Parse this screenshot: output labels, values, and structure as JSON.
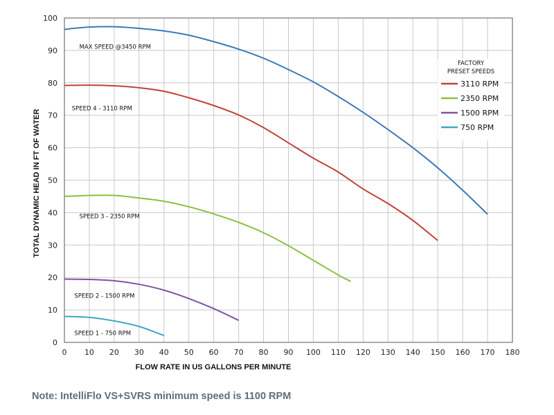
{
  "chart_data": {
    "type": "line",
    "xlabel": "FLOW RATE IN US GALLONS PER MINUTE",
    "ylabel": "TOTAL DYNAMIC HEAD IN FT OF WATER",
    "xlim": [
      0,
      180
    ],
    "ylim": [
      0,
      100
    ],
    "xticks": [
      "0",
      "10",
      "20",
      "30",
      "40",
      "50",
      "60",
      "70",
      "80",
      "90",
      "100",
      "110",
      "120",
      "130",
      "140",
      "150",
      "160",
      "170",
      "180"
    ],
    "yticks": [
      "0",
      "10",
      "20",
      "30",
      "40",
      "50",
      "60",
      "70",
      "80",
      "90",
      "100"
    ],
    "grid": true,
    "legend": {
      "title_lines": [
        "FACTORY",
        "PRESET SPEEDS"
      ],
      "placement": "top-right",
      "entries": [
        {
          "label": "3110 RPM",
          "color": "#c0413a"
        },
        {
          "label": "2350 RPM",
          "color": "#8cbf3f"
        },
        {
          "label": "1500 RPM",
          "color": "#7b56a0"
        },
        {
          "label": "750 RPM",
          "color": "#3fa7c5"
        }
      ]
    },
    "series": [
      {
        "name": "MAX SPEED @3450 RPM",
        "color": "#3b7ab8",
        "label_pos": [
          6,
          90.5
        ],
        "points": [
          [
            0,
            96.5
          ],
          [
            10,
            97.2
          ],
          [
            20,
            97.3
          ],
          [
            30,
            96.8
          ],
          [
            40,
            96
          ],
          [
            50,
            94.7
          ],
          [
            60,
            92.7
          ],
          [
            70,
            90.4
          ],
          [
            80,
            87.6
          ],
          [
            90,
            84.1
          ],
          [
            100,
            80.3
          ],
          [
            110,
            75.8
          ],
          [
            120,
            70.9
          ],
          [
            130,
            65.6
          ],
          [
            140,
            60
          ],
          [
            150,
            53.8
          ],
          [
            160,
            46.9
          ],
          [
            170,
            39.5
          ]
        ]
      },
      {
        "name": "SPEED 4 - 3110 RPM",
        "color": "#c0413a",
        "label_pos": [
          3,
          71.5
        ],
        "points": [
          [
            0,
            79.2
          ],
          [
            10,
            79.3
          ],
          [
            20,
            79.1
          ],
          [
            30,
            78.5
          ],
          [
            40,
            77.4
          ],
          [
            50,
            75.4
          ],
          [
            60,
            73
          ],
          [
            70,
            70.1
          ],
          [
            80,
            66.2
          ],
          [
            90,
            61.5
          ],
          [
            100,
            56.8
          ],
          [
            110,
            52.5
          ],
          [
            120,
            47.3
          ],
          [
            130,
            42.8
          ],
          [
            140,
            37.6
          ],
          [
            150,
            31.4
          ]
        ]
      },
      {
        "name": "SPEED 3 - 2350 RPM",
        "color": "#8cbf3f",
        "label_pos": [
          6,
          38.3
        ],
        "points": [
          [
            0,
            45
          ],
          [
            10,
            45.3
          ],
          [
            20,
            45.3
          ],
          [
            30,
            44.5
          ],
          [
            40,
            43.5
          ],
          [
            50,
            41.8
          ],
          [
            60,
            39.6
          ],
          [
            70,
            37
          ],
          [
            80,
            33.8
          ],
          [
            90,
            29.8
          ],
          [
            100,
            25.3
          ],
          [
            110,
            20.8
          ],
          [
            115,
            18.8
          ]
        ]
      },
      {
        "name": "SPEED 2 - 1500 RPM",
        "color": "#7b56a0",
        "label_pos": [
          4,
          13.8
        ],
        "points": [
          [
            0,
            19.5
          ],
          [
            10,
            19.4
          ],
          [
            20,
            19
          ],
          [
            30,
            17.9
          ],
          [
            40,
            16.1
          ],
          [
            50,
            13.5
          ],
          [
            60,
            10.4
          ],
          [
            70,
            6.8
          ]
        ]
      },
      {
        "name": "SPEED 1 - 750  RPM",
        "color": "#3fa7c5",
        "label_pos": [
          4,
          2.2
        ],
        "points": [
          [
            0,
            8
          ],
          [
            10,
            7.7
          ],
          [
            20,
            6.6
          ],
          [
            30,
            4.9
          ],
          [
            40,
            2.1
          ]
        ]
      }
    ]
  },
  "note": "Note:  IntelliFlo VS+SVRS minimum speed is 1100 RPM"
}
